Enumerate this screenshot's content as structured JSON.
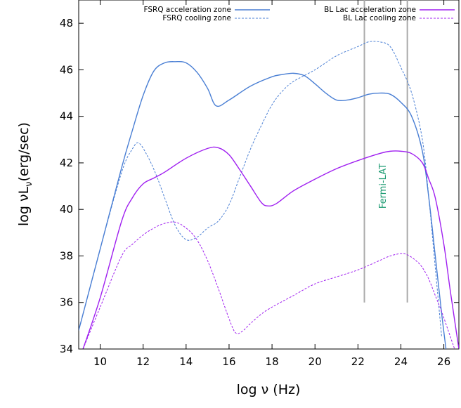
{
  "chart_data": {
    "type": "line",
    "title": "",
    "xlabel": "log ν (Hz)",
    "ylabel": "log νL",
    "ylabel_sub": "ν",
    "ylabel_suffix": "(erg/sec)",
    "xlim": [
      9,
      26.7
    ],
    "ylim": [
      34,
      49
    ],
    "xticks": [
      10,
      12,
      14,
      16,
      18,
      20,
      22,
      24,
      26
    ],
    "yticks": [
      34,
      36,
      38,
      40,
      42,
      44,
      46,
      48
    ],
    "grid": false,
    "legend_position": "top-right",
    "series": [
      {
        "name": "FSRQ acceleration zone",
        "color": "#4a7fd4",
        "style": "solid",
        "x": [
          9.0,
          10.0,
          11.0,
          11.5,
          12.0,
          12.5,
          13.0,
          13.5,
          14.0,
          14.5,
          15.0,
          15.4,
          16.0,
          17.0,
          18.0,
          18.5,
          19.0,
          19.5,
          20.0,
          20.5,
          21.0,
          21.5,
          22.0,
          22.5,
          23.0,
          23.5,
          24.0,
          24.5,
          25.0,
          25.3,
          25.6,
          25.9,
          26.1
        ],
        "values": [
          34.8,
          38.3,
          41.8,
          43.4,
          44.9,
          45.95,
          46.3,
          46.35,
          46.3,
          45.9,
          45.2,
          44.45,
          44.7,
          45.3,
          45.7,
          45.8,
          45.85,
          45.75,
          45.4,
          45.0,
          44.7,
          44.7,
          44.8,
          44.95,
          45.0,
          44.95,
          44.6,
          44.0,
          42.5,
          40.5,
          38.0,
          35.5,
          34.0
        ]
      },
      {
        "name": "FSRQ cooling zone",
        "color": "#4a7fd4",
        "style": "dashed",
        "x": [
          9.0,
          10.0,
          11.0,
          11.5,
          11.8,
          12.2,
          12.6,
          13.0,
          13.5,
          14.0,
          14.5,
          15.0,
          15.5,
          16.0,
          16.5,
          17.0,
          17.5,
          18.0,
          18.5,
          19.0,
          20.0,
          21.0,
          22.0,
          22.5,
          23.0,
          23.5,
          24.0,
          24.5,
          25.0,
          25.3,
          25.6,
          25.9
        ],
        "values": [
          34.8,
          38.3,
          41.6,
          42.6,
          42.85,
          42.3,
          41.5,
          40.5,
          39.3,
          38.7,
          38.8,
          39.2,
          39.5,
          40.2,
          41.4,
          42.6,
          43.6,
          44.5,
          45.1,
          45.5,
          46.0,
          46.6,
          47.0,
          47.2,
          47.2,
          47.0,
          46.1,
          45.0,
          43.0,
          40.5,
          37.5,
          34.5
        ]
      },
      {
        "name": "BL Lac acceleration zone",
        "color": "#a020f0",
        "style": "solid",
        "x": [
          9.2,
          10.0,
          11.0,
          11.5,
          12.0,
          12.5,
          13.0,
          14.0,
          15.0,
          15.5,
          16.0,
          16.5,
          17.0,
          17.5,
          17.8,
          18.2,
          19.0,
          20.0,
          21.0,
          22.0,
          23.0,
          23.5,
          24.0,
          24.5,
          25.0,
          25.3,
          25.6,
          26.0,
          26.3,
          26.7
        ],
        "values": [
          34.0,
          36.2,
          39.5,
          40.5,
          41.1,
          41.35,
          41.6,
          42.2,
          42.62,
          42.65,
          42.35,
          41.7,
          41.0,
          40.3,
          40.15,
          40.25,
          40.8,
          41.3,
          41.75,
          42.1,
          42.4,
          42.5,
          42.5,
          42.4,
          42.0,
          41.3,
          40.5,
          38.5,
          36.5,
          34.0
        ]
      },
      {
        "name": "BL Lac cooling zone",
        "color": "#a020f0",
        "style": "dashed",
        "x": [
          9.2,
          10.0,
          11.0,
          11.5,
          12.0,
          12.5,
          13.0,
          13.5,
          14.0,
          14.5,
          15.0,
          15.5,
          16.0,
          16.3,
          16.6,
          17.0,
          17.5,
          18.0,
          19.0,
          20.0,
          21.0,
          22.0,
          23.0,
          23.5,
          24.0,
          24.3,
          24.7,
          25.0,
          25.3,
          25.6,
          25.9,
          26.2,
          26.5
        ],
        "values": [
          34.0,
          35.8,
          38.0,
          38.5,
          38.9,
          39.2,
          39.4,
          39.45,
          39.2,
          38.7,
          37.8,
          36.6,
          35.3,
          34.7,
          34.75,
          35.1,
          35.5,
          35.8,
          36.3,
          36.8,
          37.1,
          37.4,
          37.8,
          38.0,
          38.1,
          38.05,
          37.8,
          37.5,
          37.0,
          36.3,
          35.6,
          34.8,
          34.0
        ]
      }
    ],
    "vertical_lines": [
      {
        "x": 22.3,
        "y_from": 36,
        "y_to": 49,
        "color": "#aaaaaa"
      },
      {
        "x": 24.3,
        "y_from": 36,
        "y_to": 49,
        "color": "#aaaaaa"
      }
    ],
    "annotations": [
      {
        "text": "Fermi-LAT",
        "x": 23.3,
        "y": 41.0,
        "rotation": -90,
        "color": "#1a9a70"
      }
    ]
  }
}
